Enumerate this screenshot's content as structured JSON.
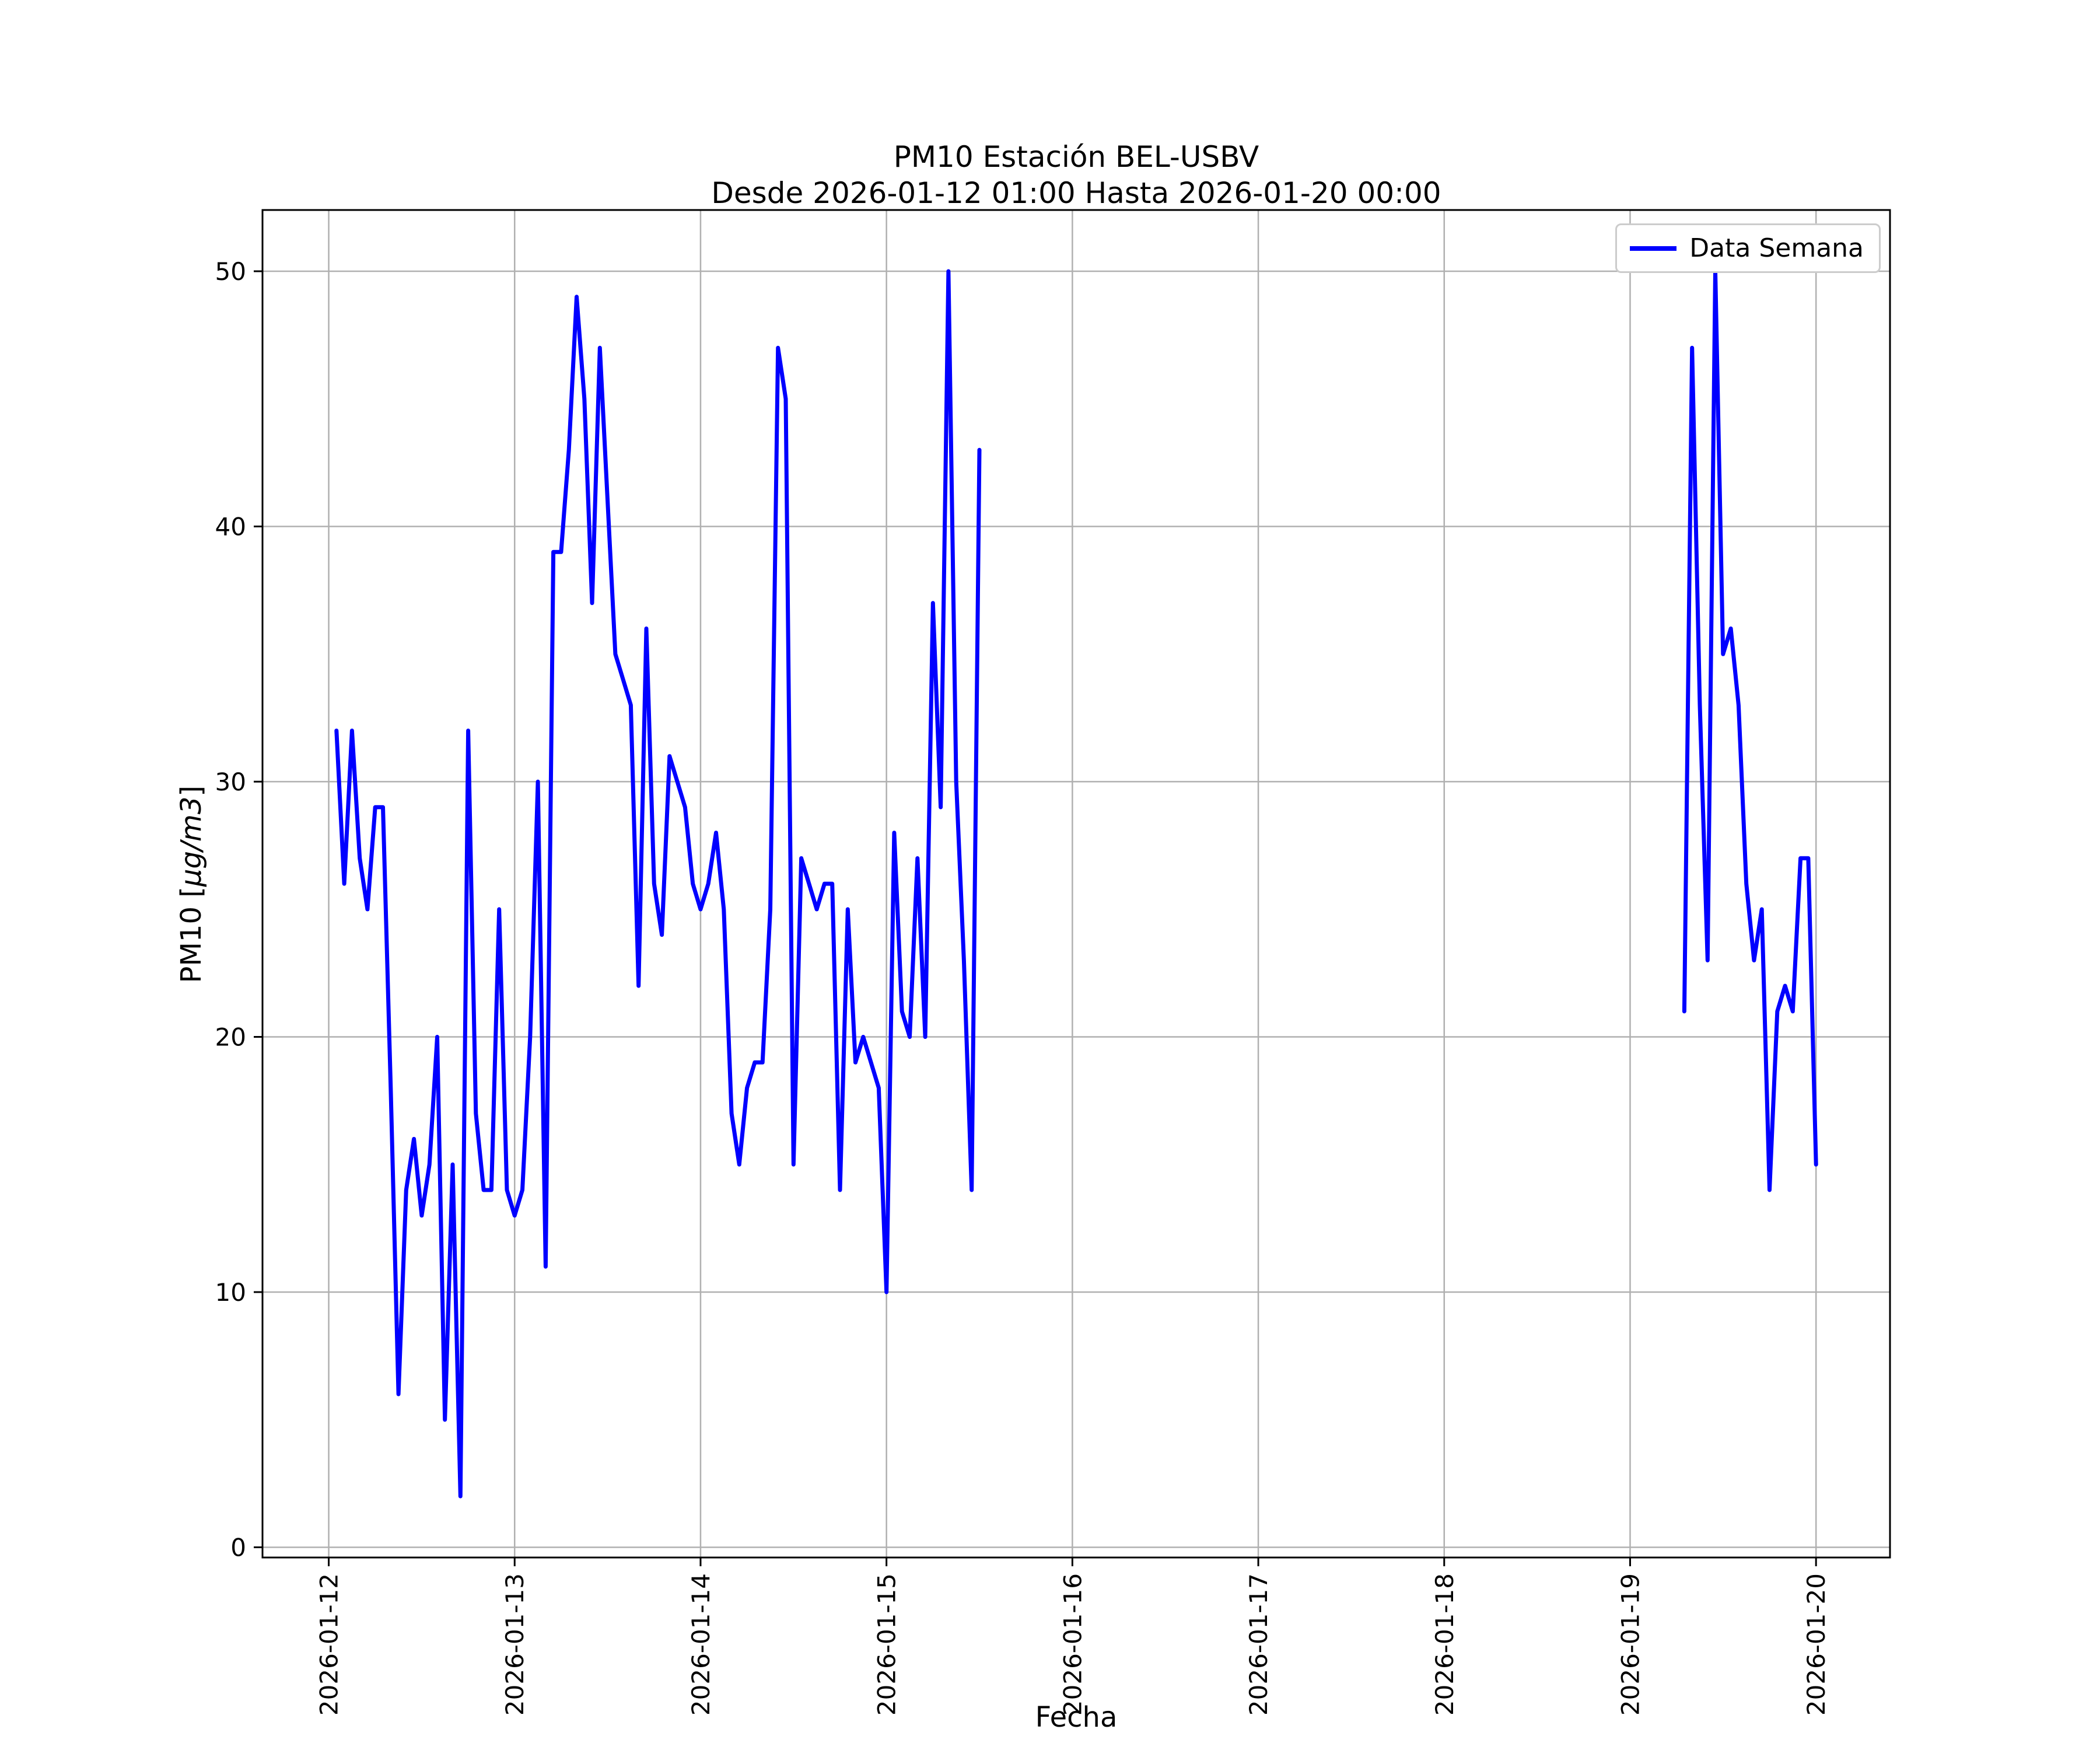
{
  "figure": {
    "title_line1": "PM10 Estación BEL-USBV",
    "title_line2": "Desde 2026-01-12 01:00 Hasta 2026-01-20 00:00",
    "xlabel": "Fecha",
    "ylabel_prefix": "PM10 [",
    "ylabel_math": "µg/m3",
    "ylabel_suffix": "]"
  },
  "legend": {
    "label": "Data Semana"
  },
  "chart_data": {
    "type": "line",
    "title": "PM10 Estación BEL-USBV",
    "subtitle": "Desde 2026-01-12 01:00 Hasta 2026-01-20 00:00",
    "xlabel": "Fecha",
    "ylabel": "PM10 [µg/m3]",
    "grid": true,
    "legend_position": "upper right",
    "line_color": "#0000ff",
    "grid_color": "#b0b0b0",
    "axis_color": "#000000",
    "y_ticks": [
      0,
      10,
      20,
      30,
      40,
      50
    ],
    "x_ticks": [
      "2026-01-12",
      "2026-01-13",
      "2026-01-14",
      "2026-01-15",
      "2026-01-16",
      "2026-01-17",
      "2026-01-18",
      "2026-01-19",
      "2026-01-20"
    ],
    "series": [
      {
        "name": "Data Semana",
        "color": "#0000ff",
        "segments": [
          {
            "start": "2026-01-12 01:00",
            "step_hours": 1,
            "values": [
              32,
              26,
              32,
              27,
              25,
              29,
              29,
              18,
              6,
              14,
              16,
              13,
              15,
              20,
              5,
              15,
              2,
              32,
              17,
              14,
              14,
              25,
              14,
              13,
              14,
              20,
              30,
              11,
              39,
              39,
              43,
              49,
              45,
              37,
              47,
              41,
              35,
              34,
              33,
              22,
              36,
              26,
              24,
              31,
              30,
              29,
              26,
              25,
              26,
              28,
              25,
              17,
              15,
              18,
              19,
              19,
              25,
              47,
              45,
              15,
              27,
              26,
              25,
              26,
              26,
              14,
              25,
              19,
              20,
              19,
              18,
              10,
              28,
              21,
              20,
              27,
              20,
              37,
              29,
              50,
              30,
              23,
              14,
              43
            ]
          },
          {
            "start": "2026-01-19 07:00",
            "step_hours": 1,
            "values": [
              21,
              47,
              33,
              23,
              50,
              35,
              36,
              33,
              26,
              23,
              25,
              14,
              21,
              22,
              21,
              27,
              27,
              15
            ]
          }
        ]
      }
    ]
  }
}
